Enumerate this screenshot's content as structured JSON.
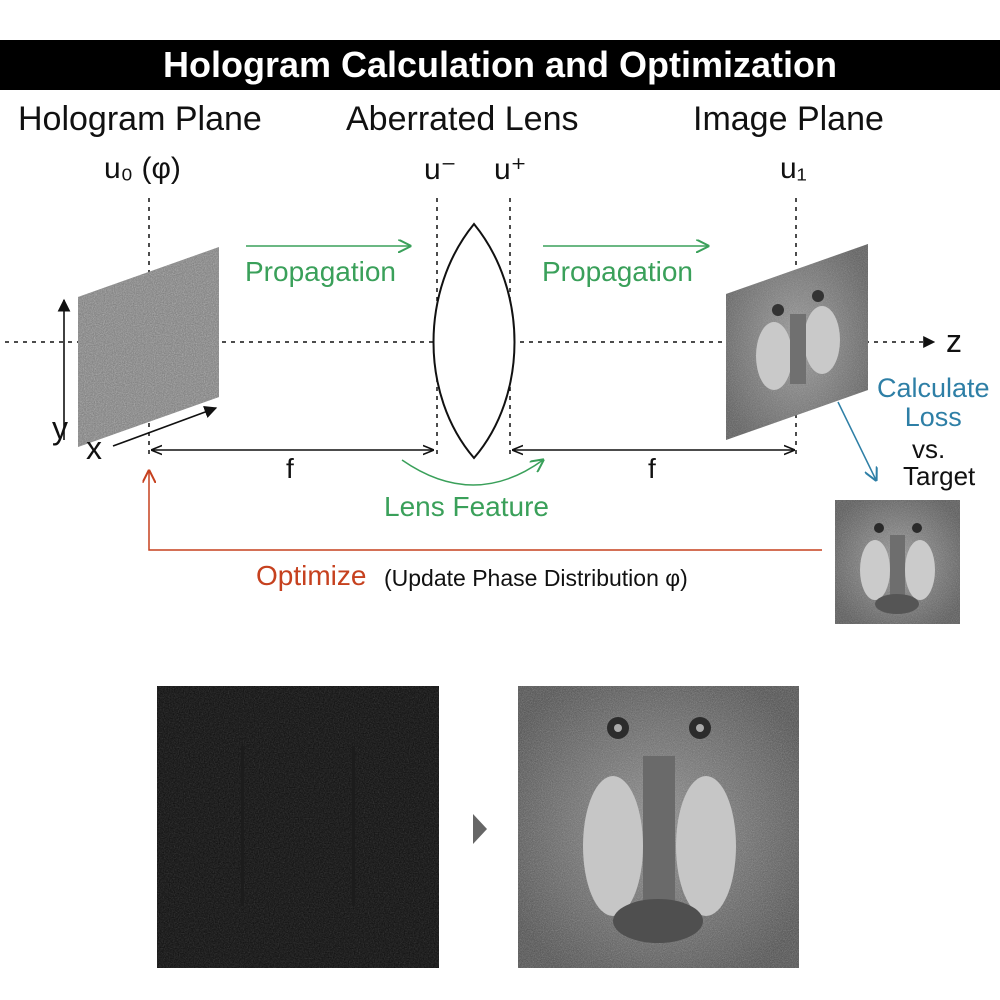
{
  "title": "Hologram Calculation and Optimization",
  "headers": {
    "hologram_plane": "Hologram Plane",
    "aberrated_lens": "Aberrated Lens",
    "image_plane": "Image Plane"
  },
  "symbols": {
    "u0": "u₀ (φ)",
    "u_minus": "u⁻",
    "u_plus": "u⁺",
    "u1": "u₁"
  },
  "labels": {
    "propagation_left": "Propagation",
    "propagation_right": "Propagation",
    "lens_feature": "Lens Feature",
    "f_left": "f",
    "f_right": "f",
    "axis_z": "z",
    "axis_y": "y",
    "axis_x": "x",
    "calculate_loss": "Calculate\nLoss",
    "vs": "vs.",
    "target": "Target",
    "optimize": "Optimize",
    "optimize_detail": "(Update Phase Distribution φ)"
  },
  "colors": {
    "propagation": "#3aa05a",
    "loss": "#2e7fa6",
    "optimize": "#c6411f",
    "title_bg": "#000000"
  }
}
